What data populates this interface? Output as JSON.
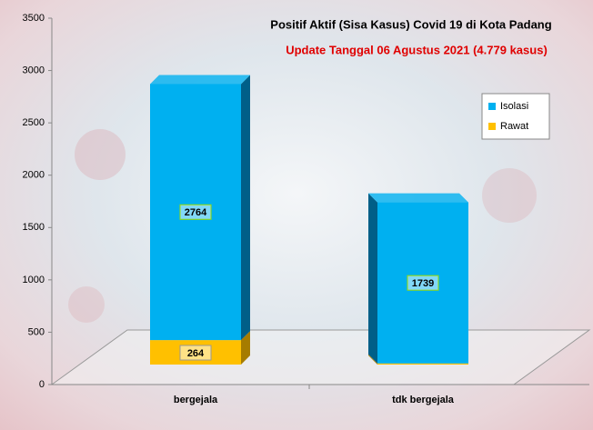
{
  "chart_data": {
    "type": "stacked-bar-3d",
    "title": "Positif Aktif  (Sisa Kasus) Covid 19 di Kota Padang",
    "subtitle": "Update Tanggal  06 Agustus  2021 (4.779 kasus)",
    "categories": [
      "bergejala",
      "tdk bergejala"
    ],
    "series": [
      {
        "name": "Rawat",
        "color": "#ffc000",
        "values": [
          264,
          12
        ]
      },
      {
        "name": "Isolasi",
        "color": "#00b0f0",
        "values": [
          2764,
          1739
        ]
      }
    ],
    "ylim": [
      0,
      3500
    ],
    "yticks": [
      0,
      500,
      1000,
      1500,
      2000,
      2500,
      3000,
      3500
    ],
    "legend": "top-right"
  }
}
